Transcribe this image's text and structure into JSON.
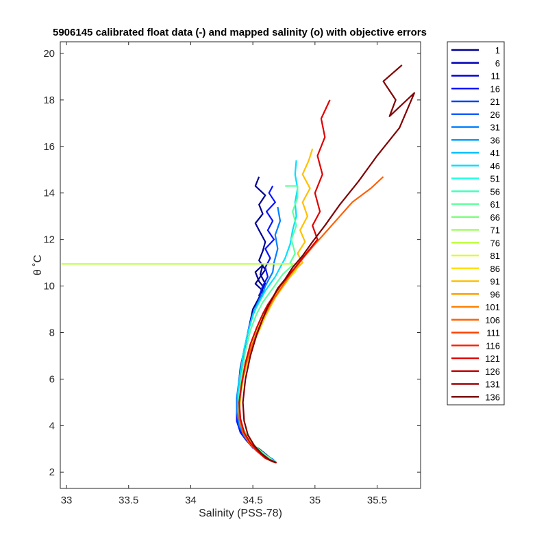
{
  "chart_data": {
    "type": "line",
    "title": "5906145 calibrated float data (-) and mapped salinity (o) with objective errors",
    "xlabel": "Salinity (PSS-78)",
    "ylabel": "θ ˚C",
    "xlim": [
      32.95,
      35.85
    ],
    "ylim": [
      1.3,
      20.5
    ],
    "x_ticks": [
      "33",
      "33.5",
      "34",
      "34.5",
      "35",
      "35.5"
    ],
    "y_ticks": [
      "2",
      "4",
      "6",
      "8",
      "10",
      "12",
      "14",
      "16",
      "18",
      "20"
    ],
    "grid": false,
    "legend_position": "outside-right",
    "legend": [
      "1",
      "6",
      "11",
      "16",
      "21",
      "26",
      "31",
      "36",
      "41",
      "46",
      "51",
      "56",
      "61",
      "66",
      "71",
      "76",
      "81",
      "86",
      "91",
      "96",
      "101",
      "106",
      "111",
      "116",
      "121",
      "126",
      "131",
      "136"
    ],
    "colors": [
      "#00008f",
      "#0000b8",
      "#0000e1",
      "#0a14ff",
      "#0040ff",
      "#0060ff",
      "#0080ff",
      "#00a0ff",
      "#00c0ff",
      "#00e0ff",
      "#20ffdf",
      "#40ffbf",
      "#60ff9f",
      "#80ff80",
      "#9fff60",
      "#bfff40",
      "#dfff20",
      "#ffe000",
      "#ffc000",
      "#ffa000",
      "#ff8000",
      "#ff6000",
      "#ff4000",
      "#ff2000",
      "#e00000",
      "#c00000",
      "#a00000",
      "#800000"
    ],
    "series": [
      {
        "label": "1",
        "x": [
          34.55,
          34.52,
          34.6,
          34.55,
          34.58,
          34.52,
          34.56,
          34.6,
          34.58,
          34.55,
          34.6,
          34.56,
          34.52,
          34.58,
          34.55,
          34.6,
          34.56,
          34.58,
          34.52,
          34.55,
          34.58,
          34.55,
          34.5,
          34.48,
          34.44,
          34.4,
          34.38,
          34.37,
          34.37,
          34.4,
          34.44,
          34.48,
          34.55,
          34.62,
          34.68
        ],
        "y": [
          14.7,
          14.3,
          13.9,
          13.5,
          13.1,
          12.7,
          12.3,
          11.9,
          11.5,
          11.1,
          10.7,
          10.4,
          10.1,
          9.8,
          9.6,
          10.1,
          10.5,
          10.9,
          10.6,
          10.2,
          10,
          9.5,
          9,
          8.5,
          7.5,
          6.5,
          5.5,
          4.8,
          4.3,
          3.8,
          3.5,
          3.2,
          3,
          2.7,
          2.4
        ]
      },
      {
        "label": "16",
        "x": [
          34.66,
          34.63,
          34.68,
          34.61,
          34.66,
          34.62,
          34.67,
          34.6,
          34.64,
          34.6,
          34.62,
          34.58,
          34.56,
          34.55,
          34.52,
          34.48,
          34.44,
          34.41,
          34.38,
          34.37,
          34.37,
          34.4,
          34.45,
          34.5,
          34.56,
          34.62,
          34.68
        ],
        "y": [
          14.3,
          14,
          13.6,
          13.2,
          12.8,
          12.4,
          12,
          11.6,
          11.2,
          10.8,
          10.4,
          10,
          9.7,
          9.4,
          9,
          8.5,
          7.5,
          6.5,
          5.5,
          4.8,
          4.2,
          3.7,
          3.35,
          3.05,
          2.8,
          2.6,
          2.4
        ]
      },
      {
        "label": "31",
        "x": [
          34.7,
          34.72,
          34.68,
          34.7,
          34.67,
          34.66,
          34.63,
          34.6,
          34.58,
          34.54,
          34.5,
          34.46,
          34.42,
          34.39,
          34.37,
          34.37,
          34.39,
          34.43,
          34.48,
          34.54,
          34.6,
          34.66,
          34.69
        ],
        "y": [
          13.4,
          12.8,
          12.2,
          11.6,
          11,
          10.6,
          10.3,
          10,
          9.7,
          9.3,
          8.8,
          8,
          7,
          6,
          5.2,
          4.6,
          4,
          3.55,
          3.2,
          2.95,
          2.75,
          2.55,
          2.4
        ]
      },
      {
        "label": "46",
        "x": [
          34.85,
          34.84,
          34.86,
          34.84,
          34.85,
          34.82,
          34.8,
          34.76,
          34.72,
          34.68,
          34.64,
          34.6,
          34.56,
          34.51,
          34.47,
          34.43,
          34.4,
          34.38,
          34.38,
          34.4,
          34.44,
          34.5,
          34.56,
          34.62,
          34.68
        ],
        "y": [
          15.4,
          14.8,
          14.2,
          13.6,
          13,
          12.4,
          11.8,
          11.2,
          10.8,
          10.4,
          10.1,
          9.8,
          9.4,
          8.9,
          8.2,
          7.3,
          6.3,
          5.4,
          4.6,
          4,
          3.55,
          3.15,
          2.85,
          2.6,
          2.4
        ]
      },
      {
        "label": "61",
        "x": [
          34.76,
          34.86,
          34.86,
          34.82,
          34.85,
          34.81,
          34.84,
          34.8,
          34.82,
          34.78,
          34.74,
          34.7,
          34.66,
          34.62,
          34.58,
          34.53,
          34.48,
          34.44,
          34.41,
          34.39,
          34.39,
          34.41,
          34.46,
          34.52,
          34.59,
          34.65,
          34.69
        ],
        "y": [
          14.3,
          14.3,
          13.8,
          13.2,
          12.6,
          12,
          11.4,
          11,
          10.9,
          10.7,
          10.5,
          10.2,
          9.9,
          9.6,
          9.3,
          8.8,
          8.1,
          7.2,
          6.2,
          5.3,
          4.6,
          4,
          3.5,
          3.1,
          2.8,
          2.55,
          2.4
        ]
      },
      {
        "label": "76",
        "x": [
          32.96,
          34.88,
          34.86,
          34.84,
          34.8,
          34.76,
          34.72,
          34.68,
          34.64,
          34.6,
          34.55,
          34.5,
          34.46,
          34.42,
          34.4,
          34.39,
          34.41,
          34.45,
          34.5,
          34.56,
          34.62,
          34.68
        ],
        "y": [
          10.95,
          10.95,
          10.8,
          10.6,
          10.4,
          10.2,
          9.9,
          9.6,
          9.3,
          8.9,
          8.4,
          7.7,
          6.9,
          6,
          5.2,
          4.5,
          3.9,
          3.45,
          3.1,
          2.8,
          2.55,
          2.4
        ]
      },
      {
        "label": "91",
        "x": [
          34.98,
          34.95,
          34.9,
          34.96,
          34.9,
          34.94,
          34.88,
          34.92,
          34.86,
          34.9,
          34.84,
          34.8,
          34.76,
          34.72,
          34.68,
          34.64,
          34.6,
          34.56,
          34.51,
          34.46,
          34.42,
          34.4,
          34.39,
          34.41,
          34.45,
          34.51,
          34.57,
          34.63,
          34.69
        ],
        "y": [
          15.9,
          15.4,
          14.8,
          14.2,
          13.6,
          13,
          12.4,
          11.9,
          11.4,
          11,
          10.7,
          10.4,
          10.1,
          9.8,
          9.5,
          9.1,
          8.7,
          8.2,
          7.6,
          6.8,
          6,
          5.3,
          4.6,
          4,
          3.5,
          3.1,
          2.8,
          2.55,
          2.4
        ]
      },
      {
        "label": "106",
        "x": [
          35.55,
          35.45,
          35.3,
          35.2,
          35.1,
          35,
          34.92,
          34.86,
          34.8,
          34.75,
          34.7,
          34.66,
          34.62,
          34.58,
          34.54,
          34.49,
          34.44,
          34.41,
          34.39,
          34.39,
          34.42,
          34.47,
          34.53,
          34.6,
          34.66,
          34.69
        ],
        "y": [
          14.7,
          14.2,
          13.6,
          13,
          12.4,
          11.8,
          11.3,
          10.9,
          10.5,
          10.1,
          9.7,
          9.4,
          9,
          8.6,
          8.1,
          7.4,
          6.6,
          5.8,
          5,
          4.3,
          3.7,
          3.25,
          2.9,
          2.6,
          2.45,
          2.4
        ]
      },
      {
        "label": "121",
        "x": [
          35.12,
          35.05,
          35.08,
          35.02,
          35.06,
          35,
          35.04,
          34.98,
          35.02,
          34.96,
          34.9,
          34.84,
          34.78,
          34.72,
          34.67,
          34.62,
          34.58,
          34.53,
          34.48,
          34.44,
          34.41,
          34.39,
          34.4,
          34.43,
          34.48,
          34.54,
          34.6,
          34.66,
          34.69
        ],
        "y": [
          18,
          17.2,
          16.4,
          15.6,
          14.8,
          14,
          13.2,
          12.6,
          12,
          11.6,
          11.2,
          10.8,
          10.4,
          10,
          9.6,
          9.2,
          8.8,
          8.2,
          7.5,
          6.7,
          5.8,
          5,
          4.3,
          3.7,
          3.25,
          2.9,
          2.6,
          2.45,
          2.4
        ]
      },
      {
        "label": "136",
        "x": [
          35.7,
          35.55,
          35.65,
          35.6,
          35.8,
          35.68,
          35.5,
          35.35,
          35.2,
          35.08,
          34.98,
          34.9,
          34.82,
          34.76,
          34.7,
          34.66,
          34.62,
          34.58,
          34.53,
          34.48,
          34.44,
          34.42,
          34.43,
          34.46,
          34.51,
          34.57,
          34.63,
          34.69
        ],
        "y": [
          19.5,
          18.8,
          18,
          17.3,
          18.3,
          16.8,
          15.6,
          14.5,
          13.5,
          12.6,
          11.9,
          11.3,
          10.8,
          10.3,
          9.9,
          9.5,
          9.1,
          8.6,
          7.9,
          7,
          6,
          5,
          4.2,
          3.6,
          3.15,
          2.8,
          2.55,
          2.4
        ]
      }
    ]
  }
}
